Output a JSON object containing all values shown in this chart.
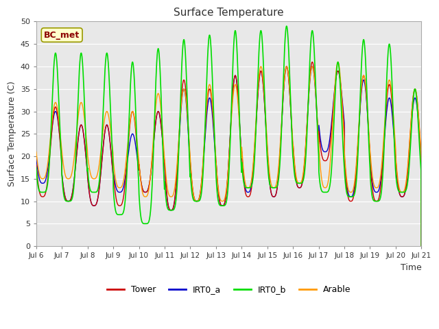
{
  "title": "Surface Temperature",
  "ylabel": "Surface Temperature (C)",
  "xlabel": "Time",
  "annotation": "BC_met",
  "ylim": [
    0,
    50
  ],
  "yticks": [
    0,
    5,
    10,
    15,
    20,
    25,
    30,
    35,
    40,
    45,
    50
  ],
  "bg_color": "#e8e8e8",
  "fig_color": "#ffffff",
  "colors": {
    "Tower": "#cc0000",
    "IRT0_a": "#0000cc",
    "IRT0_b": "#00dd00",
    "Arable": "#ff9900"
  },
  "legend_labels": [
    "Tower",
    "IRT0_a",
    "IRT0_b",
    "Arable"
  ],
  "x_tick_labels": [
    "Jul 6",
    "Jul 7",
    "Jul 8",
    "Jul 9",
    "Jul 10",
    "Jul 11",
    "Jul 12",
    "Jul 13",
    "Jul 14",
    "Jul 15",
    "Jul 16",
    "Jul 17",
    "Jul 18",
    "Jul 19",
    "Jul 20",
    "Jul 21"
  ],
  "x_tick_positions": [
    0,
    1,
    2,
    3,
    4,
    5,
    6,
    7,
    8,
    9,
    10,
    11,
    12,
    13,
    14,
    15
  ]
}
